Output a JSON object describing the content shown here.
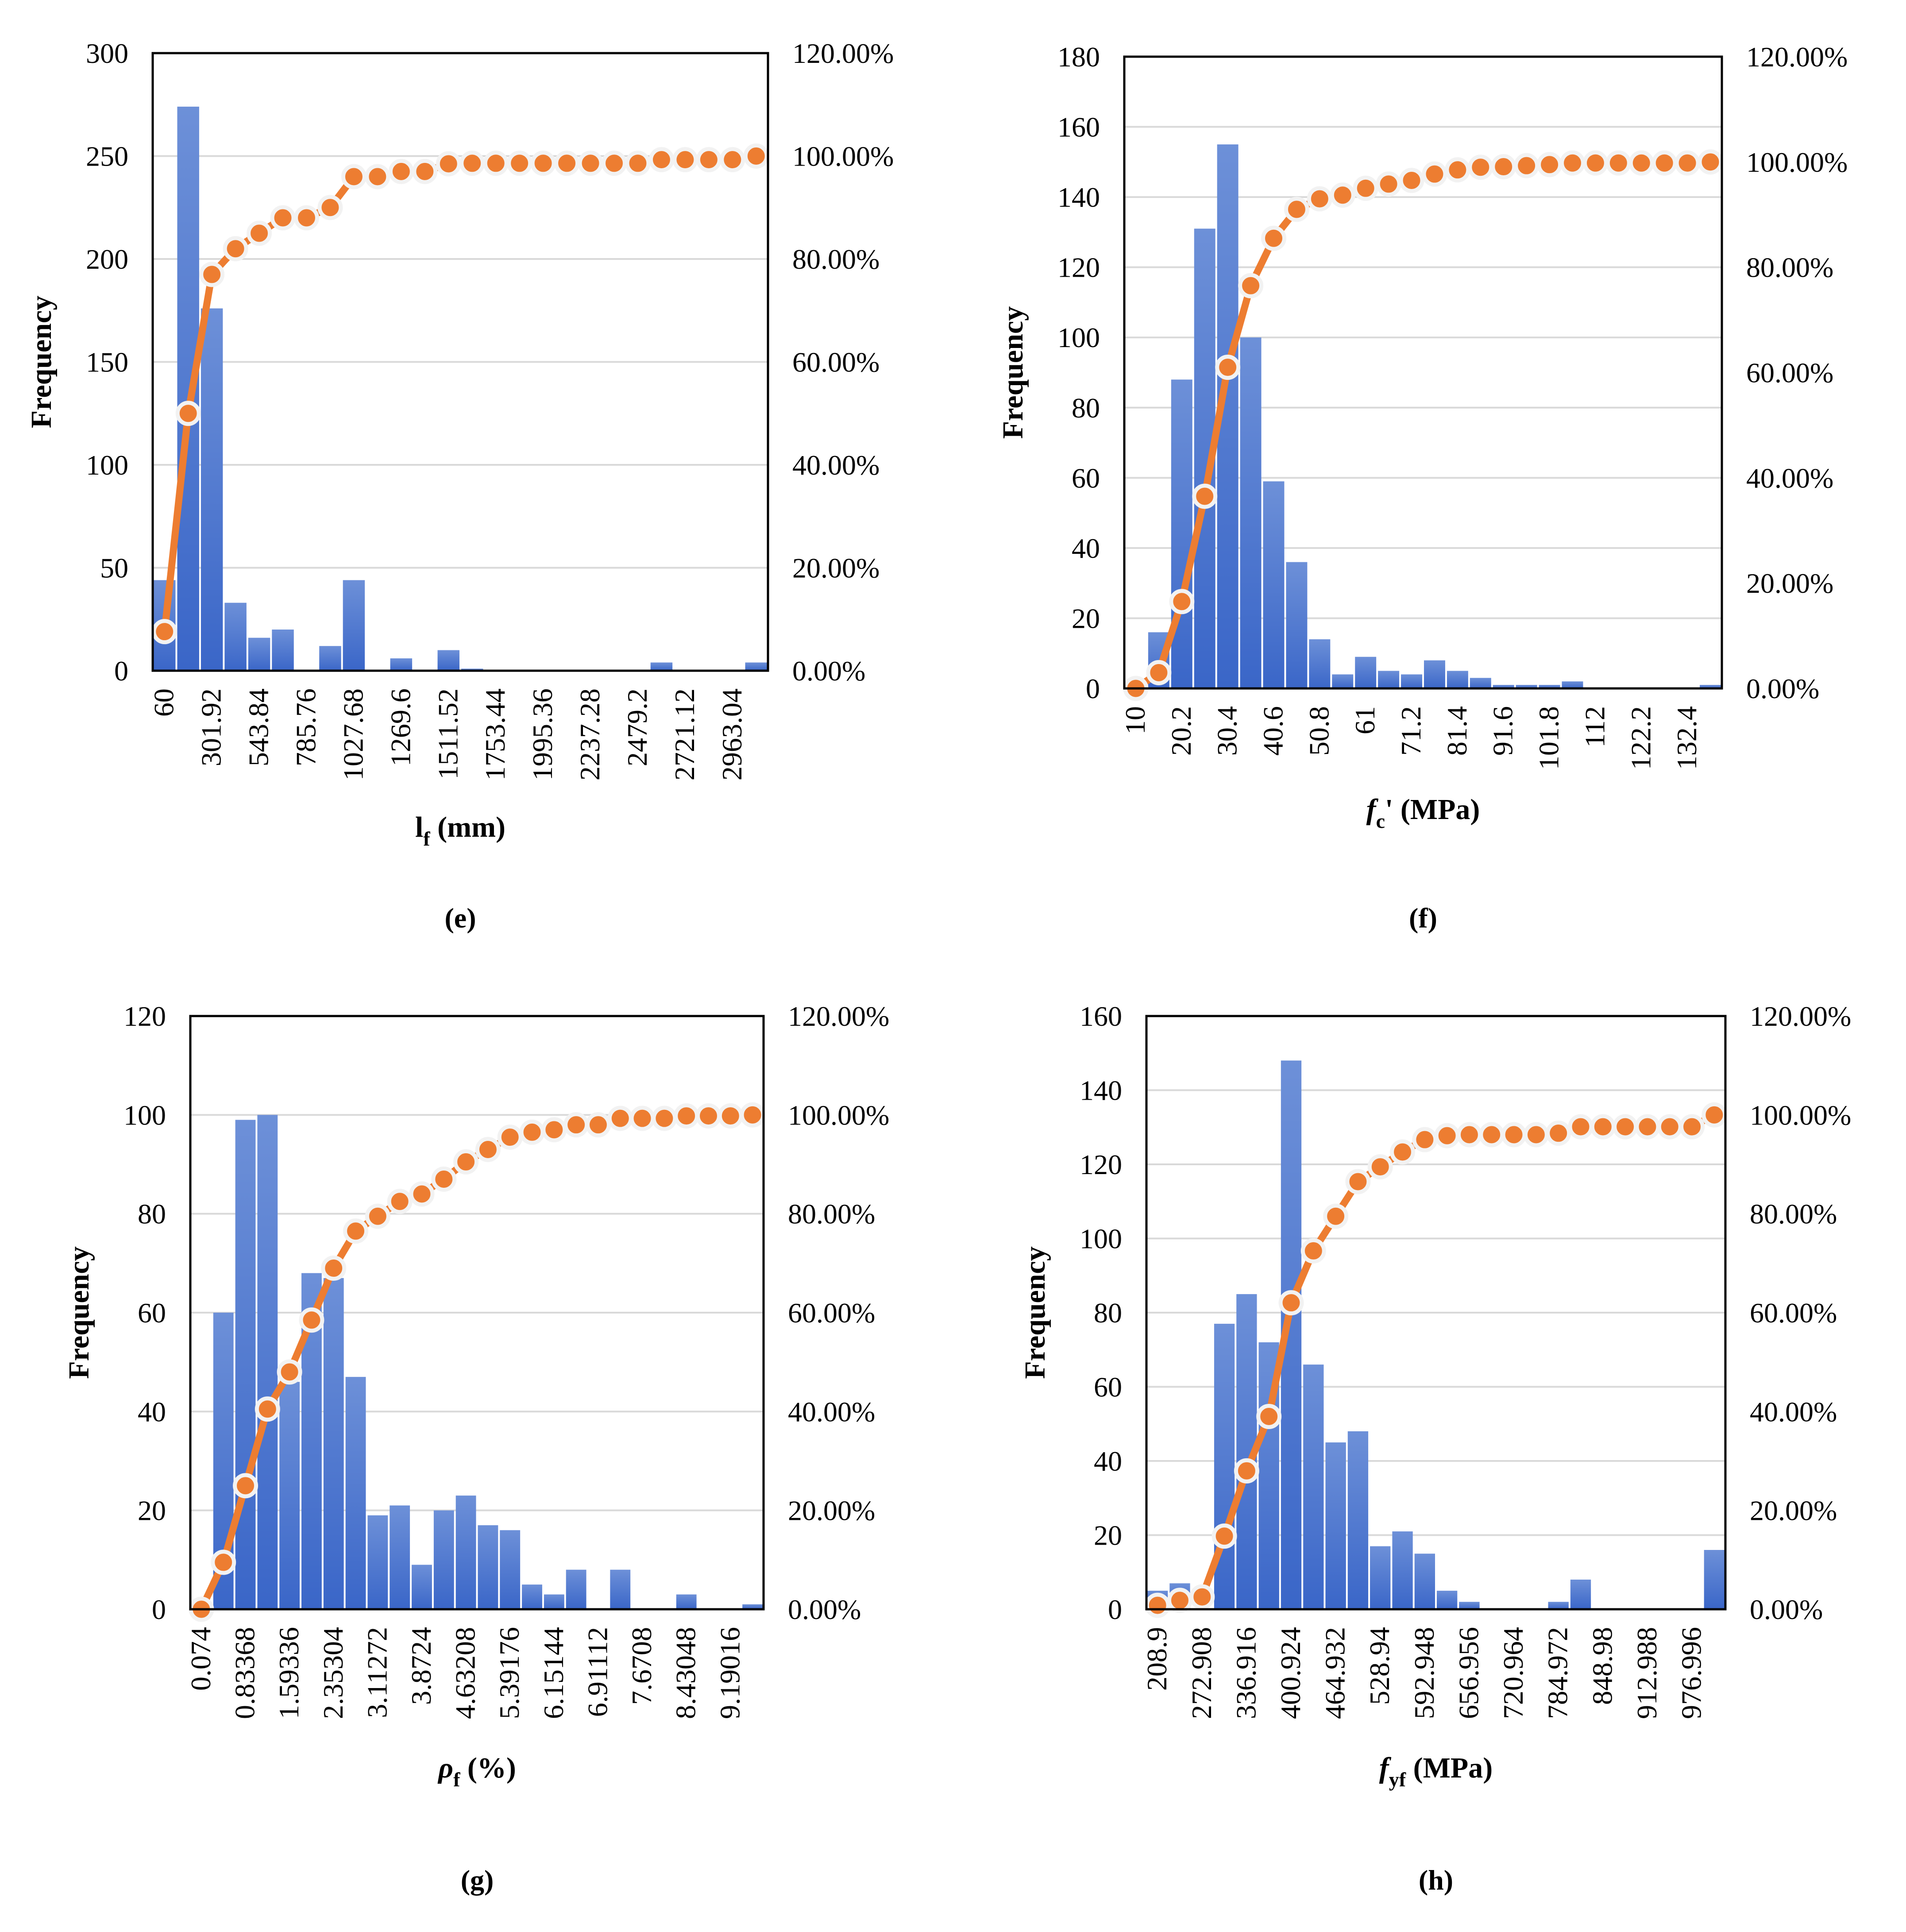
{
  "chart_data": [
    {
      "id": "e",
      "type": "bar",
      "panel_label": "(e)",
      "xlabel": {
        "main": "l",
        "sub": "f",
        "rest": " (mm)",
        "italic": false
      },
      "ylabel": "Frequency",
      "ylim": [
        0,
        300
      ],
      "yticks": [
        0,
        50,
        100,
        150,
        200,
        250,
        300
      ],
      "y2lim": [
        0,
        1.2
      ],
      "y2ticks": [
        "0.00%",
        "20.00%",
        "40.00%",
        "60.00%",
        "80.00%",
        "100.00%",
        "120.00%"
      ],
      "tick_labels": [
        "60",
        "",
        "301.92",
        "",
        "543.84",
        "",
        "785.76",
        "",
        "1027.68",
        "",
        "1269.6",
        "",
        "1511.52",
        "",
        "1753.44",
        "",
        "1995.36",
        "",
        "2237.28",
        "",
        "2479.2",
        "",
        "2721.12",
        "",
        "2963.04",
        ""
      ],
      "values": [
        44,
        274,
        176,
        33,
        16,
        20,
        0,
        12,
        44,
        0,
        6,
        0,
        10,
        1,
        0,
        0,
        0,
        0,
        0,
        0,
        0,
        4,
        0,
        0,
        0,
        4
      ],
      "cumulative": [
        0.076,
        0.5,
        0.77,
        0.82,
        0.85,
        0.88,
        0.88,
        0.9,
        0.96,
        0.96,
        0.97,
        0.97,
        0.985,
        0.986,
        0.986,
        0.986,
        0.986,
        0.986,
        0.986,
        0.986,
        0.986,
        0.993,
        0.993,
        0.993,
        0.993,
        1.0
      ]
    },
    {
      "id": "f",
      "type": "bar",
      "panel_label": "(f)",
      "xlabel": {
        "main": "f",
        "sub": "c",
        "rest": "' (MPa)",
        "italic": true
      },
      "ylabel": "Frequency",
      "ylim": [
        0,
        180
      ],
      "yticks": [
        0,
        20,
        40,
        60,
        80,
        100,
        120,
        140,
        160,
        180
      ],
      "y2lim": [
        0,
        1.2
      ],
      "y2ticks": [
        "0.00%",
        "20.00%",
        "40.00%",
        "60.00%",
        "80.00%",
        "100.00%",
        "120.00%"
      ],
      "tick_labels": [
        "10",
        "",
        "20.2",
        "",
        "30.4",
        "",
        "40.6",
        "",
        "50.8",
        "",
        "61",
        "",
        "71.2",
        "",
        "81.4",
        "",
        "91.6",
        "",
        "101.8",
        "",
        "112",
        "",
        "122.2",
        "",
        "132.4",
        ""
      ],
      "values": [
        0,
        16,
        88,
        131,
        155,
        100,
        59,
        36,
        14,
        4,
        9,
        5,
        4,
        8,
        5,
        3,
        1,
        1,
        1,
        2,
        0,
        0,
        0,
        0,
        0,
        1
      ],
      "cumulative": [
        0.0,
        0.03,
        0.165,
        0.365,
        0.61,
        0.765,
        0.855,
        0.91,
        0.93,
        0.937,
        0.95,
        0.958,
        0.965,
        0.977,
        0.985,
        0.99,
        0.991,
        0.993,
        0.995,
        0.998,
        0.998,
        0.998,
        0.998,
        0.998,
        0.998,
        1.0
      ]
    },
    {
      "id": "g",
      "type": "bar",
      "panel_label": "(g)",
      "xlabel": {
        "main": "ρ",
        "sub": "f",
        "rest": "  (%)",
        "italic": true
      },
      "ylabel": "Frequency",
      "ylim": [
        0,
        120
      ],
      "yticks": [
        0,
        20,
        40,
        60,
        80,
        100,
        120
      ],
      "y2lim": [
        0,
        1.2
      ],
      "y2ticks": [
        "0.00%",
        "20.00%",
        "40.00%",
        "60.00%",
        "80.00%",
        "100.00%",
        "120.00%"
      ],
      "tick_labels": [
        "0.074",
        "",
        "0.83368",
        "",
        "1.59336",
        "",
        "2.35304",
        "",
        "3.11272",
        "",
        "3.8724",
        "",
        "4.63208",
        "",
        "5.39176",
        "",
        "6.15144",
        "",
        "6.91112",
        "",
        "7.6708",
        "",
        "8.43048",
        "",
        "9.19016",
        ""
      ],
      "values": [
        0,
        60,
        99,
        100,
        46,
        68,
        67,
        47,
        19,
        21,
        9,
        20,
        23,
        17,
        16,
        5,
        3,
        8,
        0,
        8,
        0,
        0,
        3,
        0,
        0,
        1
      ],
      "cumulative": [
        0.0,
        0.095,
        0.25,
        0.405,
        0.48,
        0.585,
        0.69,
        0.765,
        0.795,
        0.825,
        0.84,
        0.87,
        0.905,
        0.93,
        0.955,
        0.965,
        0.97,
        0.98,
        0.98,
        0.993,
        0.993,
        0.993,
        0.998,
        0.998,
        0.998,
        1.0
      ]
    },
    {
      "id": "h",
      "type": "bar",
      "panel_label": "(h)",
      "xlabel": {
        "main": "f",
        "sub": "yf",
        "rest": " (MPa)",
        "italic": true
      },
      "ylabel": "Frequency",
      "ylim": [
        0,
        160
      ],
      "yticks": [
        0,
        20,
        40,
        60,
        80,
        100,
        120,
        140,
        160
      ],
      "y2lim": [
        0,
        1.2
      ],
      "y2ticks": [
        "0.00%",
        "20.00%",
        "40.00%",
        "60.00%",
        "80.00%",
        "100.00%",
        "120.00%"
      ],
      "tick_labels": [
        "208.9",
        "",
        "272.908",
        "",
        "336.916",
        "",
        "400.924",
        "",
        "464.932",
        "",
        "528.94",
        "",
        "592.948",
        "",
        "656.956",
        "",
        "720.964",
        "",
        "784.972",
        "",
        "848.98",
        "",
        "912.988",
        "",
        "976.996",
        ""
      ],
      "values": [
        5,
        7,
        0,
        77,
        85,
        72,
        148,
        66,
        45,
        48,
        17,
        21,
        15,
        5,
        2,
        0,
        0,
        0,
        2,
        8,
        0,
        0,
        0,
        0,
        0,
        16
      ],
      "cumulative": [
        0.008,
        0.018,
        0.025,
        0.148,
        0.28,
        0.39,
        0.62,
        0.725,
        0.795,
        0.865,
        0.895,
        0.925,
        0.95,
        0.958,
        0.96,
        0.96,
        0.96,
        0.96,
        0.963,
        0.976,
        0.976,
        0.976,
        0.976,
        0.976,
        0.976,
        1.0
      ]
    }
  ]
}
